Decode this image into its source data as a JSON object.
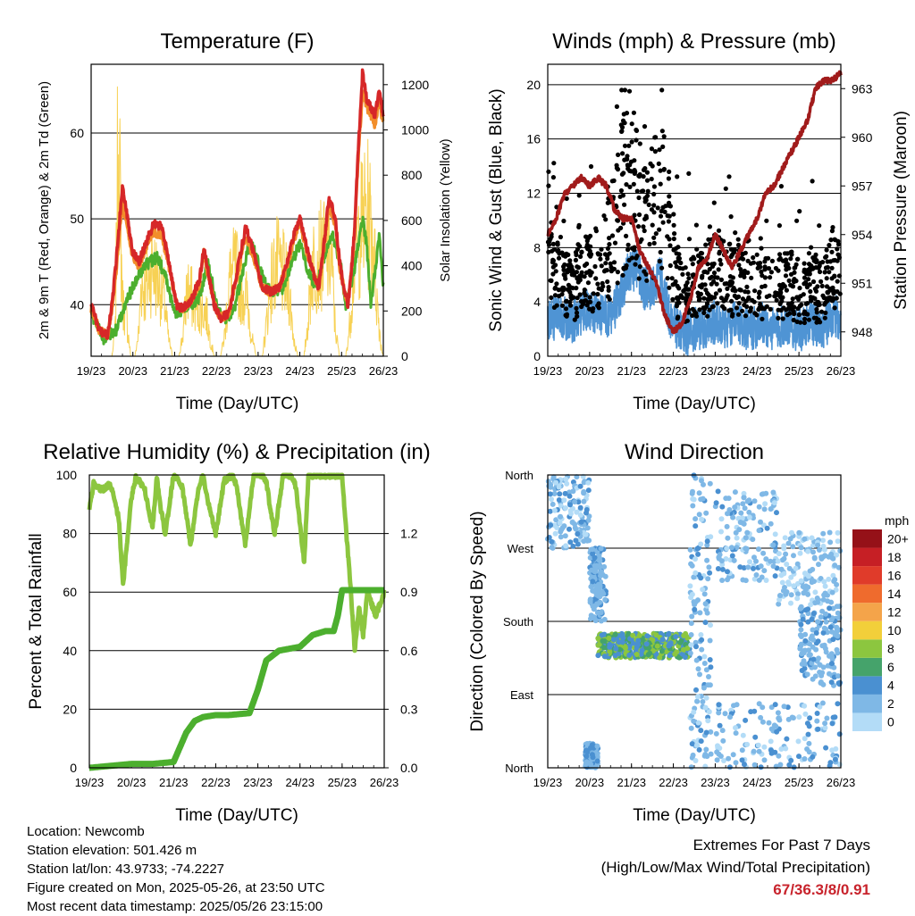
{
  "time_ticks": [
    "19/23",
    "20/23",
    "21/23",
    "22/23",
    "23/23",
    "24/23",
    "25/23",
    "26/23"
  ],
  "footer": {
    "location": "Location: Newcomb",
    "elevation": "Station elevation: 501.426 m",
    "latlon": "Station lat/lon: 43.9733; -74.2227",
    "created": "Figure created on Mon, 2025-05-26, at 23:50 UTC",
    "latest": "Most recent data timestamp: 2025/05/26 23:15:00"
  },
  "extremes": {
    "title": "Extremes For Past 7 Days",
    "subtitle": "(High/Low/Max Wind/Total Precipitation)",
    "values": "67/36.3/8/0.91",
    "color": "#c8232c"
  },
  "chart_data": [
    {
      "type": "line",
      "title": "Temperature (F)",
      "xlabel": "Time (Day/UTC)",
      "ylabel": "2m & 9m T (Red, Orange) & 2m Td (Green)",
      "y2label": "Solar Insolation (Yellow)",
      "x_range_days": [
        0,
        7
      ],
      "ylim": [
        34,
        68
      ],
      "y_ticks": [
        40,
        50,
        60
      ],
      "y2lim": [
        0,
        1290
      ],
      "y2_ticks": [
        0,
        200,
        400,
        600,
        800,
        1000,
        1200
      ],
      "grid": "horizontal",
      "series": [
        {
          "name": "2m T",
          "color": "#d62728",
          "axis": "left",
          "x": [
            0,
            0.2,
            0.4,
            0.5,
            0.6,
            0.75,
            0.9,
            1,
            1.15,
            1.3,
            1.5,
            1.7,
            1.9,
            2.05,
            2.2,
            2.4,
            2.6,
            2.7,
            2.8,
            2.95,
            3.1,
            3.3,
            3.5,
            3.7,
            3.9,
            4.1,
            4.3,
            4.5,
            4.7,
            4.85,
            5,
            5.15,
            5.3,
            5.45,
            5.55,
            5.7,
            5.85,
            5.95,
            6.05,
            6.15,
            6.2,
            6.3,
            6.4,
            6.5,
            6.6,
            6.7,
            6.8,
            6.9,
            7
          ],
          "y": [
            40,
            37,
            36.5,
            40,
            45,
            54,
            49,
            46,
            45,
            47,
            49.5,
            49,
            44,
            40,
            39.5,
            40.5,
            43,
            46.5,
            44,
            40,
            38.5,
            39,
            44,
            49,
            46,
            42,
            41.5,
            42,
            45,
            48,
            50,
            47,
            44,
            42,
            46,
            52.5,
            50,
            45,
            42,
            40,
            42,
            48,
            58,
            67,
            64,
            63,
            62,
            65,
            62
          ]
        },
        {
          "name": "9m T",
          "color": "#f28e2b",
          "axis": "left",
          "x": [
            0,
            0.2,
            0.4,
            0.5,
            0.6,
            0.75,
            0.9,
            1,
            1.15,
            1.3,
            1.5,
            1.7,
            1.9,
            2.05,
            2.2,
            2.4,
            2.6,
            2.7,
            2.8,
            2.95,
            3.1,
            3.3,
            3.5,
            3.7,
            3.9,
            4.1,
            4.3,
            4.5,
            4.7,
            4.85,
            5,
            5.15,
            5.3,
            5.45,
            5.55,
            5.7,
            5.85,
            5.95,
            6.05,
            6.15,
            6.2,
            6.3,
            6.4,
            6.5,
            6.6,
            6.7,
            6.8,
            6.9,
            7
          ],
          "y": [
            39.5,
            37,
            36.5,
            39.5,
            44,
            52,
            48,
            45.5,
            44.5,
            46.5,
            48.5,
            48,
            43.5,
            40,
            39.5,
            40.5,
            42.5,
            46,
            43.5,
            40,
            38.5,
            39,
            43.5,
            48,
            45.5,
            42,
            41.5,
            42,
            44.5,
            47.5,
            49.5,
            46.5,
            44,
            42,
            45.5,
            51.5,
            49.5,
            44.5,
            42,
            40,
            42,
            47.5,
            57,
            65,
            63,
            62,
            61,
            64,
            61
          ]
        },
        {
          "name": "2m Td",
          "color": "#4caf2e",
          "axis": "left",
          "x": [
            0,
            0.3,
            0.6,
            0.8,
            1,
            1.2,
            1.4,
            1.6,
            1.8,
            2,
            2.2,
            2.4,
            2.6,
            2.8,
            3,
            3.2,
            3.4,
            3.6,
            3.8,
            4,
            4.2,
            4.4,
            4.6,
            4.8,
            5,
            5.2,
            5.4,
            5.6,
            5.8,
            6,
            6.1,
            6.3,
            6.5,
            6.6,
            6.7,
            6.8,
            6.9,
            7
          ],
          "y": [
            39,
            36,
            37,
            40,
            42,
            44,
            45,
            45.5,
            43,
            39,
            39.5,
            40,
            41,
            45,
            40,
            38.5,
            39,
            43,
            47.5,
            45,
            42,
            41.5,
            42,
            45,
            47,
            44,
            42,
            46,
            48,
            44,
            39.5,
            44,
            50,
            47,
            40,
            44,
            48,
            42
          ]
        },
        {
          "name": "Solar Insolation",
          "color": "#f7d154",
          "axis": "right",
          "x": [
            0,
            0.5,
            0.58,
            0.65,
            0.75,
            0.85,
            0.95,
            1.05,
            1.15,
            1.2,
            1.3,
            1.45,
            1.6,
            1.75,
            1.85,
            1.95,
            2.1,
            2.2,
            2.3,
            2.45,
            2.6,
            2.75,
            2.85,
            2.95,
            3.1,
            3.2,
            3.3,
            3.45,
            3.6,
            3.75,
            3.85,
            3.95,
            4.1,
            4.2,
            4.3,
            4.45,
            4.6,
            4.75,
            4.85,
            4.95,
            5.1,
            5.2,
            5.3,
            5.45,
            5.6,
            5.75,
            5.85,
            5.95,
            6.1,
            6.2,
            6.3,
            6.45,
            6.6,
            6.75,
            6.85,
            6.95,
            7
          ],
          "y": [
            0,
            0,
            150,
            1280,
            300,
            200,
            0,
            0,
            150,
            420,
            350,
            500,
            420,
            320,
            100,
            0,
            0,
            120,
            380,
            300,
            250,
            250,
            100,
            0,
            0,
            120,
            400,
            480,
            380,
            300,
            100,
            0,
            0,
            180,
            400,
            500,
            450,
            350,
            100,
            0,
            0,
            200,
            500,
            550,
            560,
            550,
            150,
            0,
            0,
            180,
            550,
            700,
            800,
            650,
            300,
            50,
            0
          ]
        }
      ]
    },
    {
      "type": "scatter",
      "title": "Winds (mph) & Pressure (mb)",
      "xlabel": "Time (Day/UTC)",
      "ylabel": "Sonic Wind & Gust (Blue, Black)",
      "y2label": "Station Pressure (Maroon)",
      "x_range_days": [
        0,
        7
      ],
      "ylim": [
        0,
        21.5
      ],
      "y_ticks": [
        0,
        4,
        8,
        12,
        16,
        20
      ],
      "y2lim": [
        946.5,
        964.5
      ],
      "y2_ticks": [
        948,
        951,
        954,
        957,
        960,
        963
      ],
      "grid": "horizontal",
      "series": [
        {
          "name": "Sonic Wind",
          "color": "#4f94d4",
          "axis": "left",
          "x": [
            0,
            0.3,
            0.6,
            0.9,
            1.2,
            1.5,
            1.7,
            1.9,
            2.1,
            2.3,
            2.5,
            2.7,
            2.9,
            3.1,
            3.3,
            3.5,
            3.7,
            3.9,
            4.1,
            4.3,
            4.5,
            4.7,
            4.9,
            5.1,
            5.3,
            5.5,
            5.7,
            5.9,
            6.1,
            6.3,
            6.5,
            6.7,
            6.9,
            7
          ],
          "y": [
            2.5,
            3,
            2.5,
            3.5,
            3,
            3,
            4,
            6,
            6.5,
            5,
            5,
            6,
            3,
            2,
            1.5,
            2,
            2,
            2.5,
            2.5,
            2,
            2.5,
            2,
            2,
            2.5,
            2,
            2,
            2.5,
            2,
            2,
            2.5,
            2,
            2.5,
            3,
            2
          ]
        },
        {
          "name": "Gust",
          "color": "#000000",
          "axis": "left",
          "x": [
            0,
            0.3,
            0.6,
            0.9,
            1.2,
            1.5,
            1.7,
            1.9,
            2.1,
            2.3,
            2.5,
            2.7,
            2.9,
            3.1,
            3.3,
            3.5,
            3.7,
            3.9,
            4.1,
            4.3,
            4.5,
            4.7,
            4.9,
            5.1,
            5.3,
            5.5,
            5.7,
            5.9,
            6.1,
            6.3,
            6.5,
            6.7,
            6.9,
            7
          ],
          "y": [
            8,
            6,
            5.5,
            7,
            7,
            9,
            12,
            14,
            13,
            11,
            12,
            14,
            10,
            6,
            5,
            5.5,
            6,
            6.5,
            7,
            6,
            6.5,
            6,
            5.5,
            6,
            5.5,
            5.5,
            6,
            5.5,
            5,
            6,
            5,
            6.5,
            7.5,
            5
          ]
        },
        {
          "name": "Station Pressure",
          "color": "#a11b1b",
          "axis": "right",
          "x": [
            0,
            0.2,
            0.4,
            0.6,
            0.8,
            1,
            1.2,
            1.4,
            1.6,
            1.8,
            2,
            2.2,
            2.4,
            2.6,
            2.8,
            3,
            3.2,
            3.4,
            3.6,
            3.8,
            4,
            4.2,
            4.4,
            4.6,
            4.8,
            5,
            5.2,
            5.4,
            5.6,
            5.8,
            6,
            6.2,
            6.4,
            6.6,
            6.8,
            7
          ],
          "y": [
            954,
            955,
            956.5,
            957,
            957.5,
            957,
            957.5,
            957,
            955.5,
            955,
            955,
            953,
            952,
            951,
            949,
            948,
            948.5,
            950,
            952,
            952.5,
            954,
            953,
            952,
            953,
            954,
            955,
            956.5,
            957,
            958,
            959,
            960,
            961,
            963,
            963.5,
            963.5,
            964
          ]
        }
      ]
    },
    {
      "type": "line",
      "title": "Relative Humidity (%) & Precipitation (in)",
      "xlabel": "Time (Day/UTC)",
      "ylabel": "Percent & Total Rainfall",
      "x_range_days": [
        0,
        7
      ],
      "ylim": [
        0,
        100
      ],
      "y_ticks": [
        0,
        20,
        40,
        60,
        80,
        100
      ],
      "y2lim": [
        0,
        1.5
      ],
      "y2_ticks": [
        "0.0",
        "0.3",
        "0.6",
        "0.9",
        "1.2"
      ],
      "grid": "horizontal",
      "series": [
        {
          "name": "Relative Humidity",
          "color": "#8cc63f",
          "axis": "left",
          "x": [
            0,
            0.1,
            0.3,
            0.5,
            0.7,
            0.8,
            0.9,
            1,
            1.1,
            1.3,
            1.5,
            1.6,
            1.7,
            1.8,
            2,
            2.2,
            2.3,
            2.4,
            2.6,
            2.7,
            2.8,
            3,
            3.2,
            3.4,
            3.5,
            3.7,
            3.9,
            4.1,
            4.2,
            4.3,
            4.4,
            4.6,
            4.8,
            4.9,
            5.1,
            5.2,
            5.3,
            5.5,
            5.7,
            5.9,
            6,
            6.1,
            6.2,
            6.3,
            6.4,
            6.5,
            6.6,
            6.8,
            7
          ],
          "y": [
            88,
            97,
            95,
            97,
            85,
            62,
            78,
            92,
            99,
            96,
            82,
            99,
            88,
            80,
            100,
            96,
            87,
            76,
            96,
            100,
            92,
            80,
            98,
            100,
            96,
            76,
            100,
            100,
            98,
            88,
            80,
            100,
            100,
            96,
            70,
            100,
            100,
            100,
            100,
            100,
            100,
            80,
            62,
            40,
            55,
            45,
            60,
            52,
            60
          ]
        },
        {
          "name": "Total Precipitation",
          "color": "#4caf2e",
          "axis": "right",
          "x": [
            0,
            0.5,
            1,
            1.5,
            2,
            2.1,
            2.3,
            2.5,
            2.7,
            3,
            3.3,
            3.8,
            4,
            4.2,
            4.5,
            5,
            5.3,
            5.6,
            5.8,
            5.9,
            6,
            6.3,
            6.6,
            7
          ],
          "y": [
            0,
            0.01,
            0.02,
            0.02,
            0.03,
            0.08,
            0.18,
            0.24,
            0.26,
            0.27,
            0.27,
            0.28,
            0.4,
            0.55,
            0.6,
            0.62,
            0.68,
            0.7,
            0.7,
            0.78,
            0.91,
            0.91,
            0.91,
            0.91
          ]
        }
      ]
    },
    {
      "type": "scatter",
      "title": "Wind Direction",
      "xlabel": "Time (Day/UTC)",
      "ylabel": "Direction (Colored By Speed)",
      "x_range_days": [
        0,
        7
      ],
      "y_ticks": [
        "North",
        "East",
        "South",
        "West",
        "North"
      ],
      "ylim": [
        0,
        360
      ],
      "grid": "horizontal",
      "colorbar": {
        "title": "mph",
        "labels": [
          "0",
          "2",
          "4",
          "6",
          "8",
          "10",
          "12",
          "14",
          "16",
          "18",
          "20+"
        ],
        "colors": [
          "#b3dcf7",
          "#7fb8e6",
          "#4a90d1",
          "#45a36b",
          "#8cc63f",
          "#f2cf3a",
          "#f4a44a",
          "#ef6b2d",
          "#e03b2a",
          "#c61f25",
          "#951118"
        ]
      },
      "clusters": [
        {
          "x": [
            0.0,
            1.0
          ],
          "dir": [
            270,
            360
          ],
          "speed": [
            0,
            4
          ]
        },
        {
          "x": [
            0.9,
            1.2
          ],
          "dir": [
            0,
            30
          ],
          "speed": [
            1,
            4
          ]
        },
        {
          "x": [
            1.0,
            1.4
          ],
          "dir": [
            180,
            270
          ],
          "speed": [
            1,
            4
          ]
        },
        {
          "x": [
            1.2,
            3.4
          ],
          "dir": [
            135,
            165
          ],
          "speed": [
            3,
            9
          ]
        },
        {
          "x": [
            3.4,
            3.9
          ],
          "dir": [
            0,
            360
          ],
          "speed": [
            0,
            4
          ]
        },
        {
          "x": [
            4.0,
            5.5
          ],
          "dir": [
            230,
            340
          ],
          "speed": [
            0,
            4
          ]
        },
        {
          "x": [
            4.0,
            7.0
          ],
          "dir": [
            0,
            80
          ],
          "speed": [
            0,
            4
          ]
        },
        {
          "x": [
            5.5,
            7.0
          ],
          "dir": [
            200,
            290
          ],
          "speed": [
            0,
            3
          ]
        },
        {
          "x": [
            6.0,
            7.0
          ],
          "dir": [
            100,
            200
          ],
          "speed": [
            1,
            4
          ]
        }
      ]
    }
  ]
}
